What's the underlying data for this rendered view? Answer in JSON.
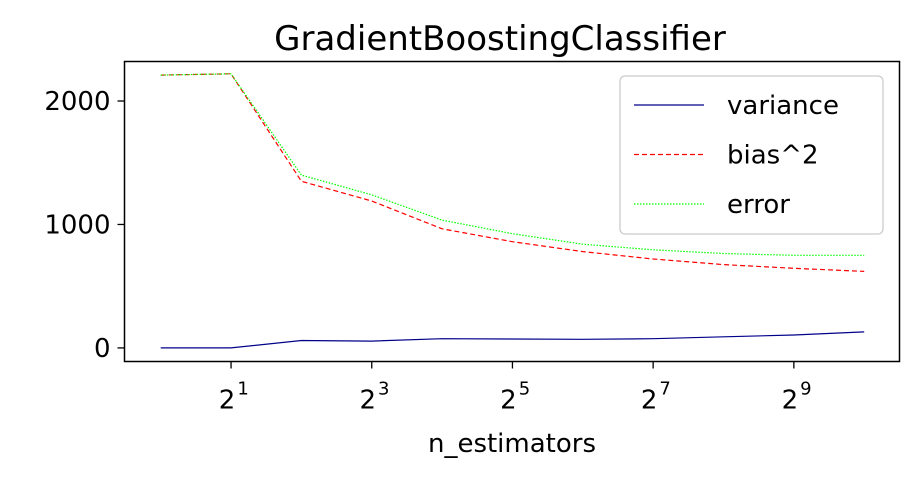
{
  "chart_data": {
    "type": "line",
    "title": "GradientBoostingClassifier",
    "xlabel": "n_estimators",
    "ylabel": "",
    "xscale": "log2",
    "x": [
      1,
      2,
      4,
      8,
      16,
      32,
      64,
      128,
      256,
      512,
      1024
    ],
    "xlim": [
      0.7,
      1450
    ],
    "ylim": [
      -110,
      2320
    ],
    "xticks": [
      {
        "value": 2,
        "base": "2",
        "exp": "1"
      },
      {
        "value": 8,
        "base": "2",
        "exp": "3"
      },
      {
        "value": 32,
        "base": "2",
        "exp": "5"
      },
      {
        "value": 128,
        "base": "2",
        "exp": "7"
      },
      {
        "value": 512,
        "base": "2",
        "exp": "9"
      }
    ],
    "yticks": [
      {
        "value": 0,
        "label": "0"
      },
      {
        "value": 1000,
        "label": "1000"
      },
      {
        "value": 2000,
        "label": "2000"
      }
    ],
    "series": [
      {
        "name": "variance",
        "color": "#00008b",
        "dash": "solid",
        "values": [
          0,
          0,
          60,
          55,
          75,
          72,
          70,
          75,
          90,
          105,
          130
        ]
      },
      {
        "name": "bias^2",
        "color": "#ff0000",
        "dash": "dashed",
        "values": [
          2210,
          2220,
          1350,
          1190,
          965,
          860,
          780,
          720,
          675,
          645,
          620
        ]
      },
      {
        "name": "error",
        "color": "#00ff00",
        "dash": "dotted",
        "values": [
          2210,
          2220,
          1400,
          1240,
          1035,
          925,
          840,
          795,
          765,
          750,
          750
        ]
      }
    ],
    "legend": {
      "position": "top-right"
    },
    "grid": false
  }
}
